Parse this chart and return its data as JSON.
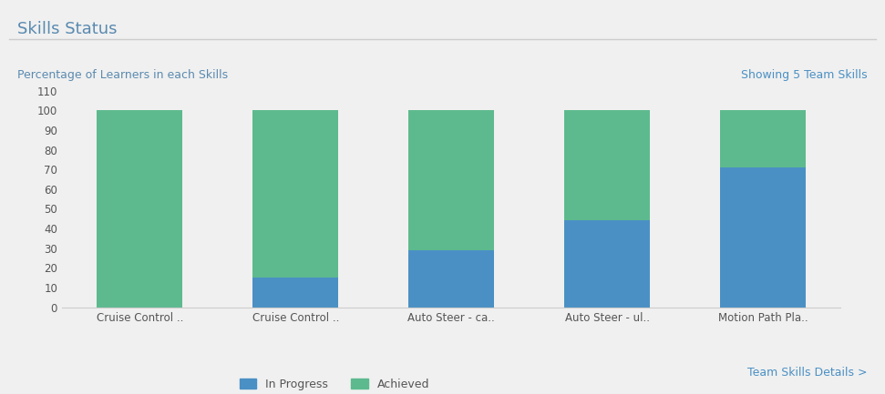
{
  "title": "Skills Status",
  "subtitle": "Percentage of Learners in each Skills",
  "top_right_text": "Showing 5 Team Skills",
  "bottom_right_text": "Team Skills Details >",
  "categories": [
    "Cruise Control ..",
    "Cruise Control ..",
    "Auto Steer - ca..",
    "Auto Steer - ul..",
    "Motion Path Pla.."
  ],
  "in_progress": [
    0,
    15,
    29,
    44,
    71
  ],
  "achieved": [
    100,
    85,
    71,
    56,
    29
  ],
  "color_in_progress": "#4a90c4",
  "color_achieved": "#5dba8e",
  "legend_labels": [
    "In Progress",
    "Achieved"
  ],
  "ylabel": "",
  "ylim": [
    0,
    110
  ],
  "yticks": [
    0,
    10,
    20,
    30,
    40,
    50,
    60,
    70,
    80,
    90,
    100,
    110
  ],
  "background_color": "#f0f0f0",
  "plot_bg_color": "#f0f0f0",
  "title_color": "#5a8ab0",
  "subtitle_color": "#5a8ab0",
  "top_right_color": "#4a90c4",
  "bottom_right_color": "#4a90c4",
  "bar_width": 0.55
}
